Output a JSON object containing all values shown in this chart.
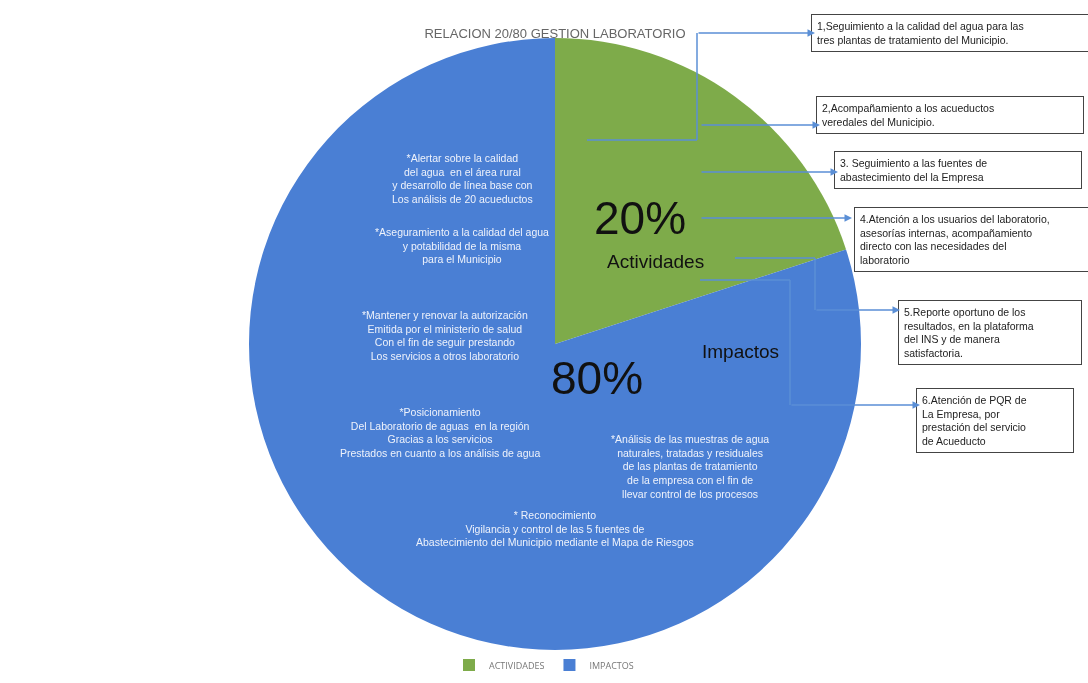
{
  "chart_data": {
    "type": "pie",
    "title": "RELACION 20/80 GESTION LABORATORIO",
    "categories": [
      "ACTIVIDADES",
      "IMPACTOS"
    ],
    "values": [
      20,
      80
    ],
    "colors": [
      "#7eab4a",
      "#4a7fd4"
    ],
    "value_labels": [
      "20%",
      "80%"
    ],
    "legend": "bottom",
    "annotations": [
      "Actividades",
      "Impactos",
      "*Alertar sobre la calidad\ndel agua  en el área rural\ny desarrollo de línea base con\nLos análisis de 20 acueductos",
      "*Aseguramiento a la calidad del agua\ny potabilidad de la misma\npara el Municipio",
      "*Mantener y renovar la autorización\nEmitida por el ministerio de salud\nCon el fin de seguir prestando\nLos servicios a otros laboratorio",
      "*Posicionamiento\nDel Laboratorio de aguas  en la región\nGracias a los servicios\nPrestados en cuanto a los análisis de agua",
      "*Análisis de las muestras de agua\nnaturales, tratadas y residuales\nde las plantas de tratamiento\nde la empresa con el fin de\nllevar control de los procesos",
      "* Reconocimiento\nVigilancia y control de las 5 fuentes de\nAbastecimiento del Municipio mediante el Mapa de Riesgos",
      "1,Seguimiento a la calidad del agua para las\ntres plantas de tratamiento del Municipio.",
      "2,Acompañamiento a los acueductos\nveredales del Municipio.",
      "3. Seguimiento a las fuentes de\nabastecimiento del la Empresa",
      "4.Atención a los usuarios del laboratorio,\nasesorías internas, acompañamiento\ndirecto con las necesidades del\nlaboratorio",
      "5.Reporte oportuno de los\nresultados, en la plataforma\ndel INS y de manera\nsatisfactoria.",
      "6.Atención de PQR de\nLa Empresa, por\nprestación del servicio\nde Acueducto"
    ]
  }
}
